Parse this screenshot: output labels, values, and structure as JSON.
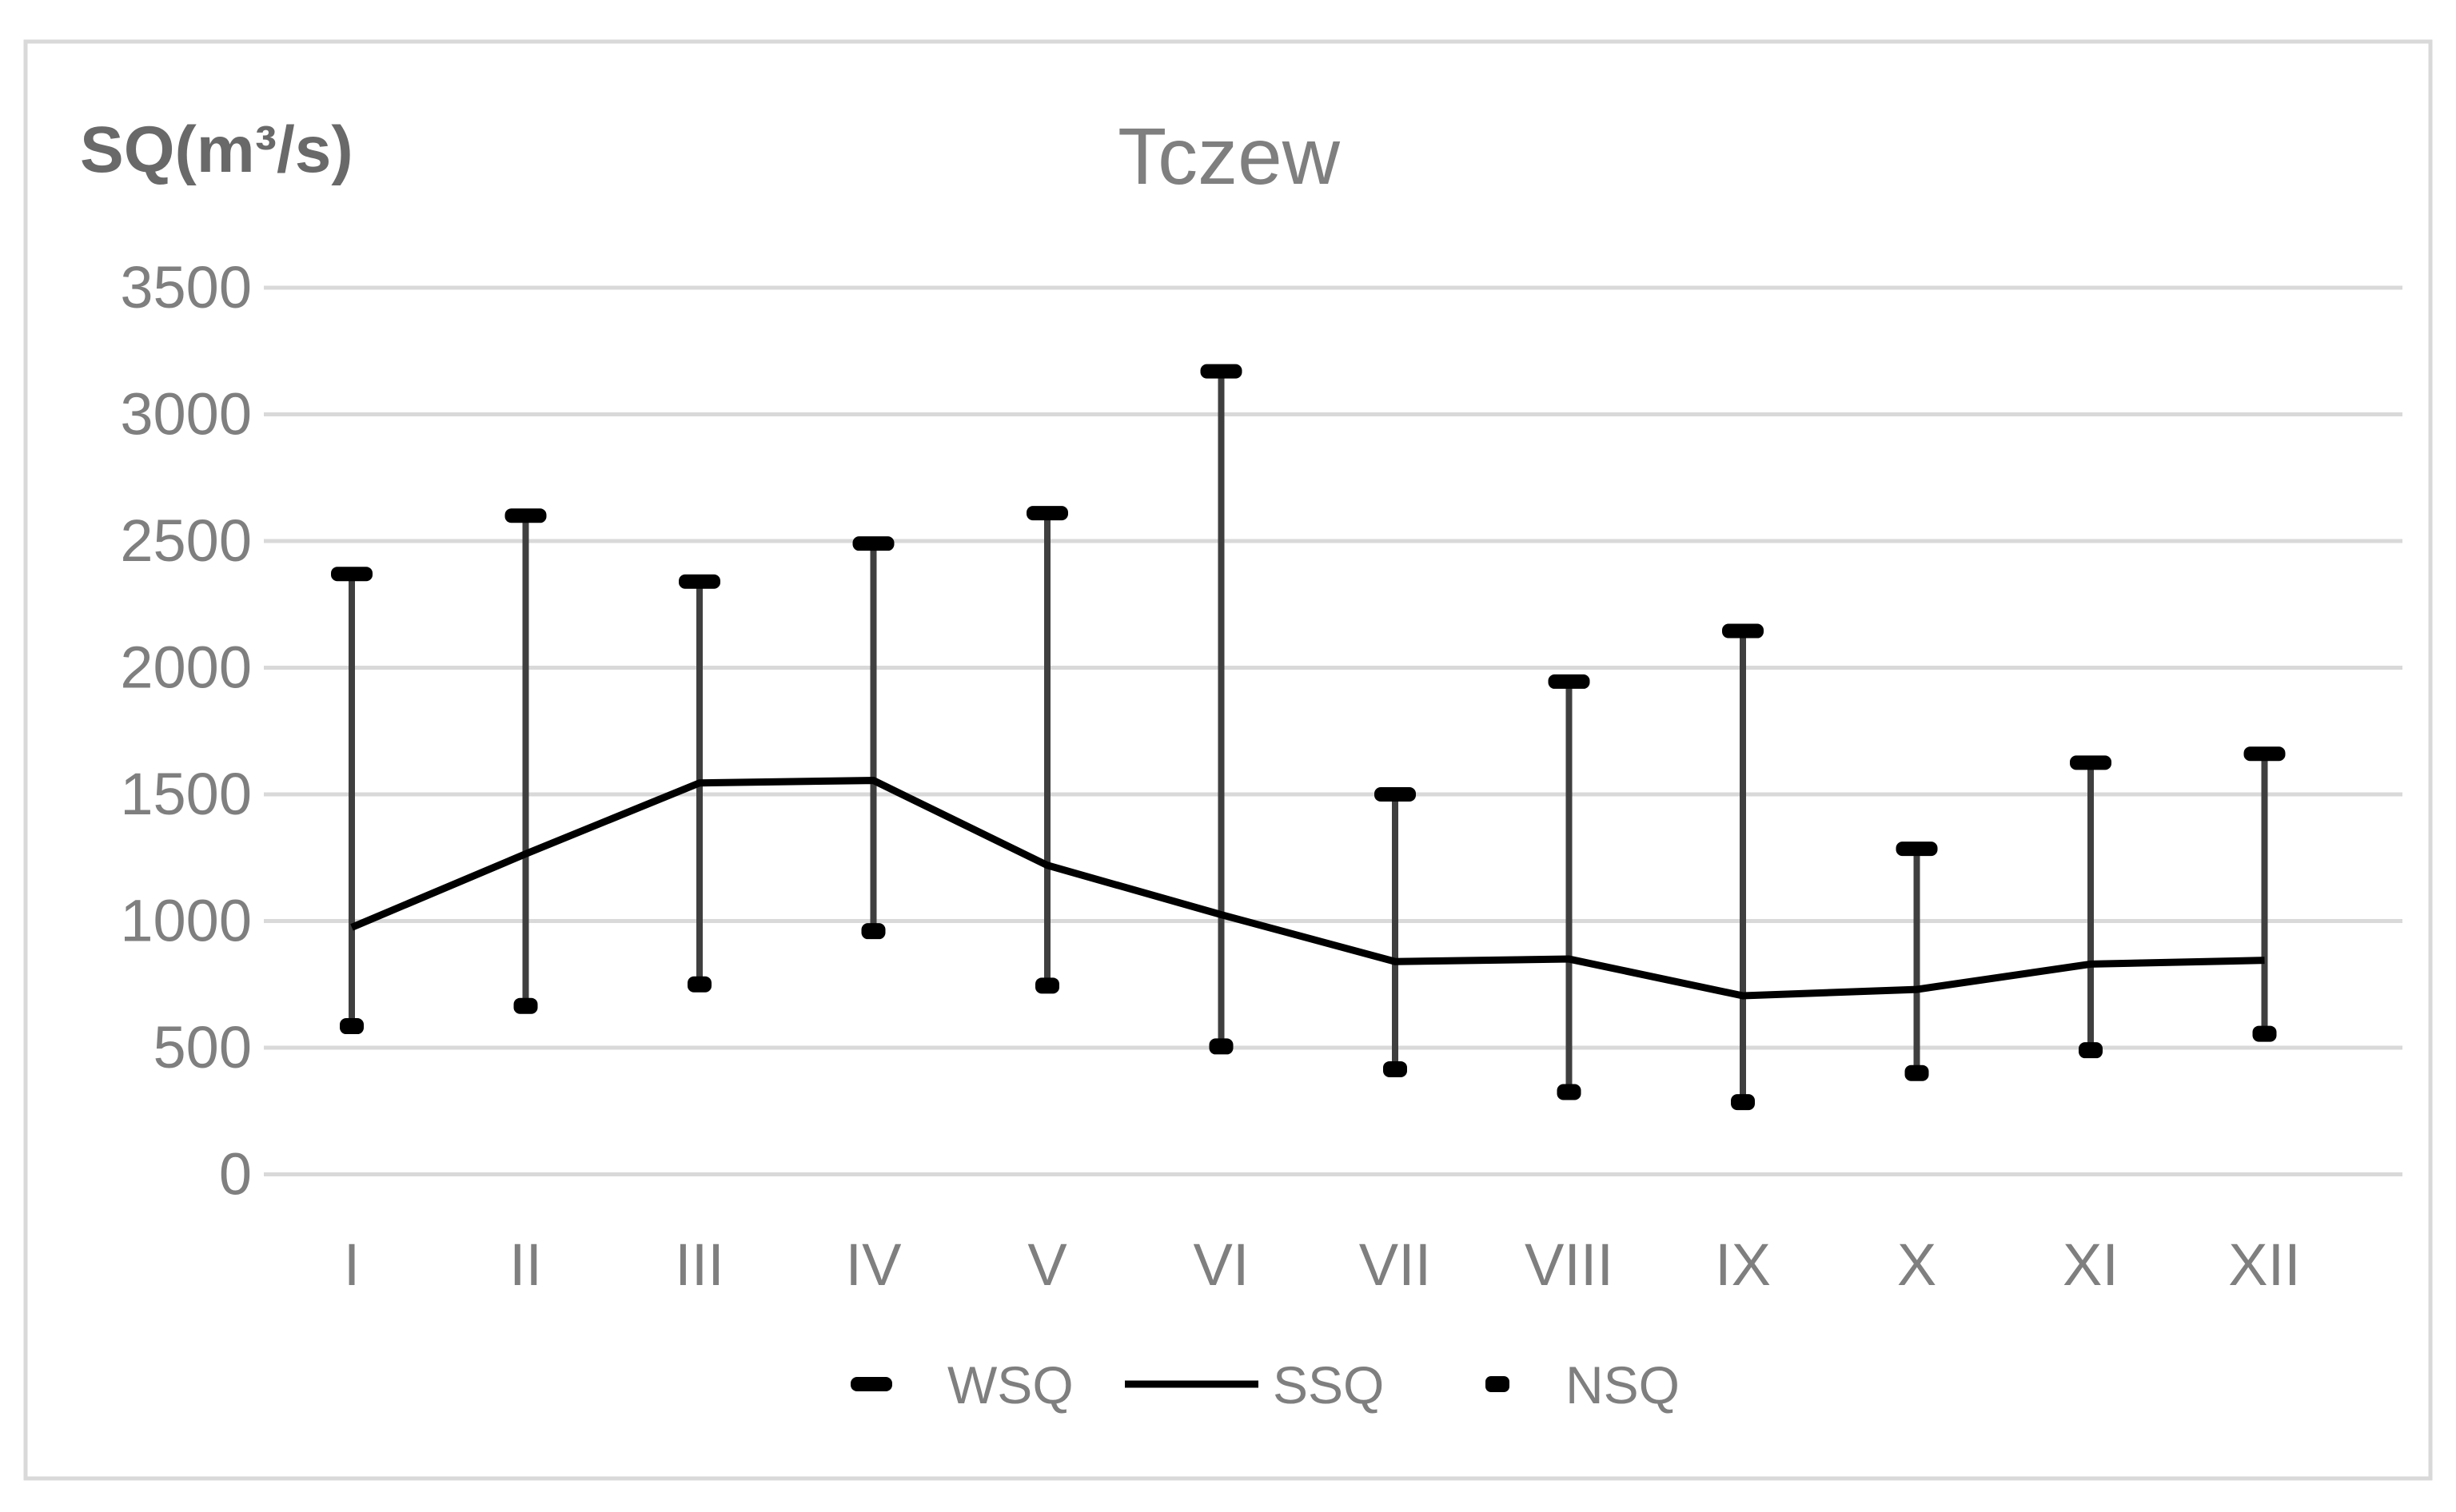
{
  "chart_data": {
    "type": "line",
    "subtype": "high-low-range-with-mean-line",
    "title": "Tczew",
    "ylabel": "SQ(m³/s)",
    "xlabel": "",
    "categories": [
      "I",
      "II",
      "III",
      "IV",
      "V",
      "VI",
      "VII",
      "VIII",
      "IX",
      "X",
      "XI",
      "XII"
    ],
    "series": [
      {
        "name": "WSQ",
        "role": "high",
        "marker": "wide-dash",
        "values": [
          2370,
          2600,
          2340,
          2490,
          2610,
          3170,
          1500,
          1945,
          2145,
          1285,
          1625,
          1660
        ]
      },
      {
        "name": "SSQ",
        "role": "mean",
        "marker": "line",
        "values": [
          975,
          1265,
          1545,
          1555,
          1220,
          1025,
          840,
          850,
          705,
          730,
          830,
          845
        ]
      },
      {
        "name": "NSQ",
        "role": "low",
        "marker": "short-dash",
        "values": [
          585,
          665,
          750,
          960,
          745,
          505,
          415,
          325,
          285,
          400,
          490,
          555
        ]
      }
    ],
    "ylim": [
      0,
      3500
    ],
    "yticks": [
      3500,
      3000,
      2500,
      2000,
      1500,
      1000,
      500,
      0
    ],
    "grid": "horizontal",
    "legend_position": "bottom",
    "legend_entries": [
      "WSQ",
      "SSQ",
      "NSQ"
    ]
  },
  "style": {
    "background": "#ffffff",
    "frame_border": "#d9d9d9",
    "gridline": "#d9d9d9",
    "range_bar": "#3f3f3f",
    "marker_fill": "#000000",
    "mean_line": "#000000",
    "tick_label_color": "#7f7f7f",
    "title_color": "#7f7f7f",
    "ylabel_color": "#696969",
    "legend_label_color": "#7f7f7f"
  }
}
